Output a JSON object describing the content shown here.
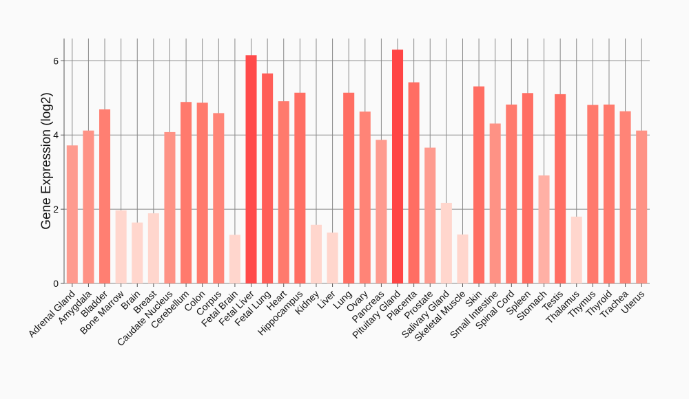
{
  "chart_data": {
    "type": "bar",
    "title": "",
    "xlabel": "",
    "ylabel": "Gene Expression (log2)",
    "ylim": [
      0,
      6.6
    ],
    "yticks": [
      0,
      2,
      4,
      6
    ],
    "grid": true,
    "categories": [
      "Adrenal Gland",
      "Amygdala",
      "Bladder",
      "Bone Marrow",
      "Brain",
      "Breast",
      "Caudate Nucleus",
      "Cerebellum",
      "Colon",
      "Corpus",
      "Fetal Brain",
      "Fetal Liver",
      "Fetal Lung",
      "Heart",
      "Hippocampus",
      "Kidney",
      "Liver",
      "Lung",
      "Ovary",
      "Pancreas",
      "Pituitary Gland",
      "Placenta",
      "Prostate",
      "Salivary Gland",
      "Skeletal Muscle",
      "Skin",
      "Small Intestine",
      "Spinal Cord",
      "Spleen",
      "Stomach",
      "Testis",
      "Thalamus",
      "Thymus",
      "Thyroid",
      "Trachea",
      "Uterus"
    ],
    "values": [
      3.72,
      4.12,
      4.69,
      1.97,
      1.64,
      1.89,
      4.08,
      4.89,
      4.87,
      4.59,
      1.31,
      6.15,
      5.66,
      4.91,
      5.14,
      1.58,
      1.37,
      5.14,
      4.63,
      3.87,
      6.3,
      5.42,
      3.66,
      2.17,
      1.32,
      5.31,
      4.31,
      4.82,
      5.13,
      2.91,
      5.1,
      1.8,
      4.81,
      4.82,
      4.64,
      4.12
    ],
    "colors": [
      "#fe9b8f",
      "#fe9285",
      "#ff7f72",
      "#ffd6cd",
      "#ffd6cd",
      "#ffd6cd",
      "#fe9285",
      "#ff7a6d",
      "#ff7a6d",
      "#ff8477",
      "#ffd6cd",
      "#ff4a4a",
      "#ff5e58",
      "#ff7a6d",
      "#ff6e63",
      "#ffd6cd",
      "#ffd6cd",
      "#ff6e63",
      "#ff8477",
      "#fe9b8f",
      "#ff4545",
      "#ff6e63",
      "#fe9b8f",
      "#ffd6cd",
      "#ffd6cd",
      "#ff6e63",
      "#fe9285",
      "#ff7a6d",
      "#ff6e63",
      "#ffb0a5",
      "#ff6e63",
      "#ffd6cd",
      "#ff7a6d",
      "#ff7a6d",
      "#ff8477",
      "#fe9285"
    ]
  }
}
